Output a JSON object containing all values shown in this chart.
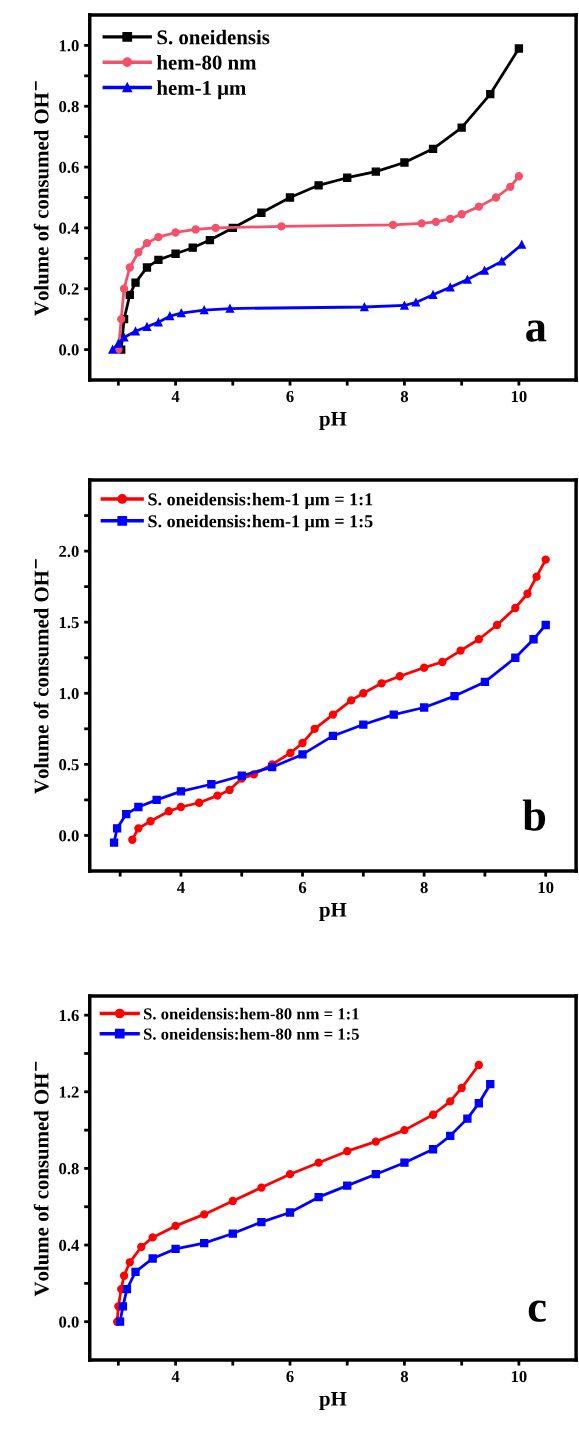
{
  "chart_data": [
    {
      "type": "line",
      "xlabel": "pH",
      "ylabel": "Volume of consumed OH$^{−}$",
      "legend": "top left",
      "grid": false,
      "line_style": "solid",
      "xlim": [
        2.5,
        11
      ],
      "ylim": [
        -0.1,
        1.1
      ],
      "xticks": [
        {
          "value": 3,
          "label": null
        },
        4,
        {
          "value": 5,
          "label": null
        },
        6,
        {
          "value": 7,
          "label": null
        },
        8,
        {
          "value": 9,
          "label": null
        },
        10
      ],
      "yticks": [
        {
          "value": 0,
          "label": "0.0"
        },
        {
          "value": 0.1,
          "label": null
        },
        {
          "value": 0.2,
          "label": "0.2"
        },
        {
          "value": 0.3,
          "label": null
        },
        {
          "value": 0.4,
          "label": "0.4"
        },
        {
          "value": 0.5,
          "label": null
        },
        {
          "value": 0.6,
          "label": "0.6"
        },
        {
          "value": 0.7,
          "label": null
        },
        {
          "value": 0.8,
          "label": "0.8"
        },
        {
          "value": 0.9,
          "label": null
        },
        {
          "value": 1.0,
          "label": "1.0"
        }
      ],
      "annotations": [
        "a"
      ],
      "series": [
        {
          "name": "S. oneidensis",
          "color": "#000000",
          "marker": "square",
          "x": [
            3.05,
            3.1,
            3.2,
            3.3,
            3.5,
            3.7,
            4.0,
            4.3,
            4.6,
            5.0,
            5.5,
            6.0,
            6.5,
            7.0,
            7.5,
            8.0,
            8.5,
            9.0,
            9.5,
            10.0
          ],
          "values": [
            0,
            0.1,
            0.18,
            0.22,
            0.27,
            0.295,
            0.315,
            0.335,
            0.36,
            0.4,
            0.45,
            0.5,
            0.54,
            0.565,
            0.585,
            0.615,
            0.66,
            0.73,
            0.84,
            0.99
          ]
        },
        {
          "name": "hem-80 nm",
          "color": "#f5506a",
          "marker": "circle",
          "x": [
            3.0,
            3.05,
            3.1,
            3.2,
            3.35,
            3.5,
            3.7,
            4.0,
            4.35,
            4.7,
            5.85,
            7.8,
            8.3,
            8.55,
            8.8,
            9.0,
            9.3,
            9.6,
            9.85,
            10.0
          ],
          "values": [
            0,
            0.1,
            0.2,
            0.27,
            0.32,
            0.35,
            0.37,
            0.385,
            0.395,
            0.4,
            0.405,
            0.41,
            0.415,
            0.42,
            0.43,
            0.445,
            0.47,
            0.5,
            0.535,
            0.57
          ]
        },
        {
          "name": "hem-1 μm",
          "color": "#0000ff",
          "marker": "triangle",
          "x": [
            2.9,
            3.0,
            3.1,
            3.3,
            3.5,
            3.7,
            3.9,
            4.1,
            4.5,
            4.95,
            7.3,
            8.0,
            8.2,
            8.5,
            8.8,
            9.1,
            9.4,
            9.7,
            10.05
          ],
          "values": [
            0,
            0.02,
            0.04,
            0.06,
            0.075,
            0.09,
            0.11,
            0.12,
            0.13,
            0.135,
            0.14,
            0.145,
            0.155,
            0.18,
            0.205,
            0.23,
            0.26,
            0.29,
            0.345
          ]
        }
      ]
    },
    {
      "type": "line",
      "xlabel": "pH",
      "ylabel": "Volume of consumed OH$^{−}$",
      "legend": "top left",
      "grid": false,
      "line_style": "solid",
      "xlim": [
        2.5,
        10.5
      ],
      "ylim": [
        -0.25,
        2.5
      ],
      "xticks": [
        {
          "value": 3,
          "label": null
        },
        4,
        {
          "value": 5,
          "label": null
        },
        6,
        {
          "value": 7,
          "label": null
        },
        8,
        {
          "value": 9,
          "label": null
        },
        10
      ],
      "yticks": [
        {
          "value": 0,
          "label": "0.0"
        },
        {
          "value": 0.25,
          "label": null
        },
        {
          "value": 0.5,
          "label": "0.5"
        },
        {
          "value": 0.75,
          "label": null
        },
        {
          "value": 1.0,
          "label": "1.0"
        },
        {
          "value": 1.25,
          "label": null
        },
        {
          "value": 1.5,
          "label": "1.5"
        },
        {
          "value": 1.75,
          "label": null
        },
        {
          "value": 2.0,
          "label": "2.0"
        },
        {
          "value": 2.25,
          "label": null
        }
      ],
      "annotations": [
        "b"
      ],
      "series": [
        {
          "name": "S. oneidensis:hem-1 μm = 1:1",
          "color": "#ff0000",
          "marker": "circle",
          "x": [
            3.2,
            3.3,
            3.5,
            3.8,
            4.0,
            4.3,
            4.6,
            4.8,
            5.0,
            5.2,
            5.5,
            5.8,
            6.0,
            6.2,
            6.5,
            6.8,
            7.0,
            7.3,
            7.6,
            8.0,
            8.3,
            8.6,
            8.9,
            9.2,
            9.5,
            9.7,
            9.85,
            10.0
          ],
          "values": [
            -0.03,
            0.05,
            0.1,
            0.17,
            0.2,
            0.23,
            0.28,
            0.32,
            0.4,
            0.43,
            0.5,
            0.58,
            0.65,
            0.75,
            0.85,
            0.95,
            1.0,
            1.07,
            1.12,
            1.18,
            1.22,
            1.3,
            1.38,
            1.48,
            1.6,
            1.7,
            1.82,
            1.94
          ]
        },
        {
          "name": "S. oneidensis:hem-1 μm = 1:5",
          "color": "#0000ff",
          "marker": "square",
          "x": [
            2.9,
            2.95,
            3.1,
            3.3,
            3.6,
            4.0,
            4.5,
            5.0,
            5.5,
            6.0,
            6.5,
            7.0,
            7.5,
            8.0,
            8.5,
            9.0,
            9.5,
            9.8,
            10.0
          ],
          "values": [
            -0.05,
            0.05,
            0.15,
            0.2,
            0.25,
            0.31,
            0.36,
            0.42,
            0.48,
            0.57,
            0.7,
            0.78,
            0.85,
            0.9,
            0.98,
            1.08,
            1.25,
            1.38,
            1.48
          ]
        }
      ]
    },
    {
      "type": "line",
      "xlabel": "pH",
      "ylabel": "Volume of consumed OH$^{−}$",
      "legend": "top left",
      "grid": false,
      "line_style": "solid",
      "xlim": [
        2.5,
        11
      ],
      "ylim": [
        -0.2,
        1.7
      ],
      "xticks": [
        {
          "value": 3,
          "label": null
        },
        4,
        {
          "value": 5,
          "label": null
        },
        6,
        {
          "value": 7,
          "label": null
        },
        8,
        {
          "value": 9,
          "label": null
        },
        10
      ],
      "yticks": [
        {
          "value": 0,
          "label": "0.0"
        },
        {
          "value": 0.2,
          "label": null
        },
        {
          "value": 0.4,
          "label": "0.4"
        },
        {
          "value": 0.6,
          "label": null
        },
        {
          "value": 0.8,
          "label": "0.8"
        },
        {
          "value": 1.0,
          "label": null
        },
        {
          "value": 1.2,
          "label": "1.2"
        },
        {
          "value": 1.4,
          "label": null
        },
        {
          "value": 1.6,
          "label": "1.6"
        }
      ],
      "annotations": [
        "c"
      ],
      "series": [
        {
          "name": "S. oneidensis:hem-80 nm = 1:1",
          "color": "#ff0000",
          "marker": "circle",
          "x": [
            2.98,
            3.0,
            3.05,
            3.1,
            3.2,
            3.4,
            3.6,
            4.0,
            4.5,
            5.0,
            5.5,
            6.0,
            6.5,
            7.0,
            7.5,
            8.0,
            8.5,
            8.8,
            9.0,
            9.3
          ],
          "values": [
            0,
            0.08,
            0.17,
            0.24,
            0.31,
            0.39,
            0.44,
            0.5,
            0.56,
            0.63,
            0.7,
            0.77,
            0.83,
            0.89,
            0.94,
            1.0,
            1.08,
            1.15,
            1.22,
            1.34
          ]
        },
        {
          "name": "S. oneidensis:hem-80 nm = 1:5",
          "color": "#0000ff",
          "marker": "square",
          "x": [
            3.03,
            3.08,
            3.15,
            3.3,
            3.6,
            4.0,
            4.5,
            5.0,
            5.5,
            6.0,
            6.5,
            7.0,
            7.5,
            8.0,
            8.5,
            8.8,
            9.1,
            9.3,
            9.5
          ],
          "values": [
            0,
            0.08,
            0.17,
            0.26,
            0.33,
            0.38,
            0.41,
            0.46,
            0.52,
            0.57,
            0.65,
            0.71,
            0.77,
            0.83,
            0.9,
            0.97,
            1.06,
            1.14,
            1.24
          ]
        }
      ]
    }
  ]
}
